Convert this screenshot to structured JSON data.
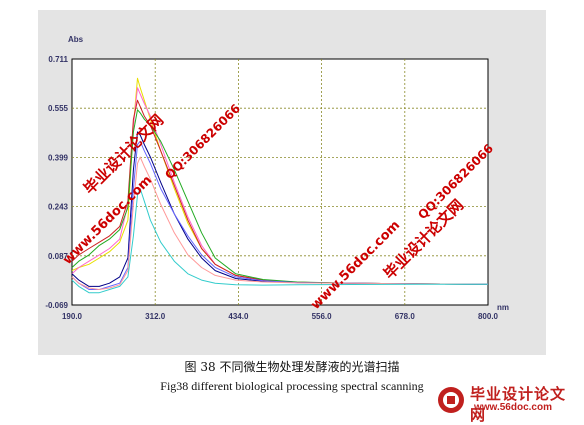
{
  "chart_data": {
    "type": "line",
    "ylabel": "Abs",
    "xlabel": "nm",
    "xlim": [
      190.0,
      800.0
    ],
    "ylim": [
      -0.069,
      0.711
    ],
    "x_ticks": [
      "190.0",
      "312.0",
      "434.0",
      "556.0",
      "678.0",
      "800.0"
    ],
    "y_ticks": [
      "0.711",
      "0.555",
      "0.399",
      "0.243",
      "0.087",
      "-0.069"
    ],
    "grid": true,
    "series": [
      {
        "color": "#e8e000",
        "x": [
          190,
          200,
          215,
          230,
          245,
          260,
          272,
          280,
          286,
          290,
          296,
          305,
          320,
          340,
          360,
          380,
          400,
          430,
          470,
          520,
          600,
          700,
          800
        ],
        "y": [
          0.04,
          0.05,
          0.06,
          0.08,
          0.1,
          0.13,
          0.2,
          0.5,
          0.65,
          0.62,
          0.58,
          0.52,
          0.42,
          0.3,
          0.19,
          0.11,
          0.06,
          0.025,
          0.01,
          0.003,
          0.0,
          -0.002,
          -0.003
        ]
      },
      {
        "color": "#ff66cc",
        "x": [
          190,
          200,
          215,
          230,
          245,
          260,
          272,
          280,
          286,
          290,
          296,
          305,
          320,
          340,
          360,
          380,
          400,
          430,
          470,
          520,
          600,
          700,
          800
        ],
        "y": [
          0.03,
          0.05,
          0.07,
          0.09,
          0.11,
          0.14,
          0.25,
          0.5,
          0.62,
          0.6,
          0.57,
          0.53,
          0.44,
          0.32,
          0.21,
          0.12,
          0.06,
          0.025,
          0.01,
          0.003,
          0.0,
          -0.002,
          -0.003
        ]
      },
      {
        "color": "#cc2222",
        "x": [
          190,
          200,
          215,
          230,
          245,
          260,
          272,
          280,
          286,
          290,
          296,
          305,
          320,
          340,
          360,
          380,
          400,
          430,
          470,
          520,
          600,
          700,
          800
        ],
        "y": [
          0.07,
          0.09,
          0.11,
          0.13,
          0.15,
          0.18,
          0.26,
          0.52,
          0.58,
          0.56,
          0.53,
          0.5,
          0.42,
          0.31,
          0.2,
          0.11,
          0.06,
          0.025,
          0.01,
          0.003,
          0.0,
          -0.002,
          -0.003
        ]
      },
      {
        "color": "#22aa22",
        "x": [
          190,
          200,
          215,
          230,
          245,
          260,
          272,
          280,
          286,
          290,
          296,
          305,
          320,
          340,
          360,
          380,
          400,
          430,
          470,
          520,
          600,
          700,
          800
        ],
        "y": [
          0.05,
          0.07,
          0.09,
          0.12,
          0.14,
          0.17,
          0.24,
          0.48,
          0.55,
          0.54,
          0.52,
          0.5,
          0.45,
          0.36,
          0.26,
          0.16,
          0.08,
          0.03,
          0.012,
          0.004,
          0.0,
          -0.002,
          -0.003
        ]
      },
      {
        "color": "#000088",
        "x": [
          190,
          200,
          215,
          230,
          245,
          260,
          272,
          280,
          286,
          290,
          296,
          305,
          320,
          340,
          360,
          380,
          400,
          430,
          470,
          520,
          600,
          700,
          800
        ],
        "y": [
          0.03,
          0.01,
          -0.01,
          -0.01,
          0.0,
          0.02,
          0.08,
          0.36,
          0.48,
          0.47,
          0.44,
          0.4,
          0.32,
          0.22,
          0.14,
          0.08,
          0.04,
          0.015,
          0.006,
          0.002,
          0.0,
          -0.002,
          -0.003
        ]
      },
      {
        "color": "#6666ff",
        "x": [
          190,
          200,
          215,
          230,
          245,
          260,
          272,
          280,
          286,
          290,
          296,
          305,
          320,
          340,
          360,
          380,
          400,
          430,
          470,
          520,
          600,
          700,
          800
        ],
        "y": [
          0.02,
          0.0,
          -0.02,
          -0.02,
          -0.01,
          0.0,
          0.05,
          0.3,
          0.44,
          0.45,
          0.42,
          0.38,
          0.3,
          0.22,
          0.15,
          0.09,
          0.05,
          0.02,
          0.008,
          0.002,
          0.0,
          -0.002,
          -0.003
        ]
      },
      {
        "color": "#ff9999",
        "x": [
          190,
          200,
          215,
          230,
          245,
          260,
          272,
          280,
          286,
          290,
          296,
          305,
          320,
          340,
          360,
          380,
          400,
          430,
          470,
          520,
          600,
          700,
          800
        ],
        "y": [
          0.02,
          0.0,
          -0.015,
          -0.02,
          -0.015,
          -0.005,
          0.04,
          0.25,
          0.38,
          0.4,
          0.37,
          0.33,
          0.25,
          0.16,
          0.09,
          0.05,
          0.025,
          0.01,
          0.004,
          0.001,
          0.0,
          -0.002,
          -0.003
        ]
      },
      {
        "color": "#33cccc",
        "x": [
          190,
          200,
          215,
          230,
          245,
          260,
          272,
          280,
          286,
          290,
          296,
          305,
          320,
          340,
          360,
          380,
          400,
          430,
          470,
          520,
          600,
          700,
          800
        ],
        "y": [
          0.01,
          -0.01,
          -0.03,
          -0.03,
          -0.02,
          -0.01,
          0.02,
          0.15,
          0.28,
          0.3,
          0.26,
          0.2,
          0.13,
          0.07,
          0.03,
          0.01,
          0.0,
          -0.005,
          -0.006,
          -0.005,
          -0.004,
          -0.003,
          -0.003
        ]
      }
    ]
  },
  "captions": {
    "chinese": "图  38   不同微生物处理发酵液的光谱扫描",
    "english": "Fig38    different biological processing spectral scanning"
  },
  "watermarks": [
    {
      "text": "毕业设计论文网",
      "color": "#cc0000"
    },
    {
      "text": "www.56doc.com",
      "color": "#cc0000"
    },
    {
      "text": "QQ:306826066",
      "color": "#cc0000"
    },
    {
      "text": "毕业设计论文网",
      "color": "#cc0000"
    },
    {
      "text": "www.56doc.com",
      "color": "#cc0000"
    },
    {
      "text": "QQ:306826066",
      "color": "#cc0000"
    }
  ],
  "logo": {
    "name": "毕业设计论文网",
    "url": "www.56doc.com",
    "color": "#c0201e"
  }
}
